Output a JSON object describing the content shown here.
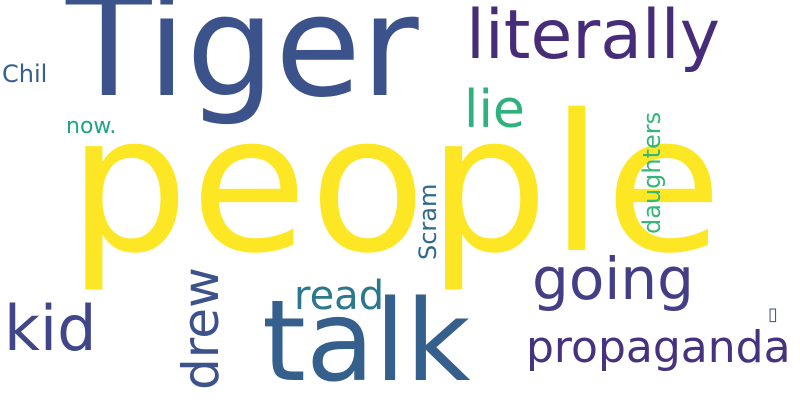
{
  "words": [
    {
      "key": "people",
      "text": "people",
      "color": "#fde725"
    },
    {
      "key": "tiger",
      "text": "Tiger",
      "color": "#3b528b"
    },
    {
      "key": "talk",
      "text": "talk",
      "color": "#355f8d"
    },
    {
      "key": "literally",
      "text": "literally",
      "color": "#472c7a"
    },
    {
      "key": "going",
      "text": "going",
      "color": "#433e85"
    },
    {
      "key": "propaganda",
      "text": "propaganda",
      "color": "#46327e"
    },
    {
      "key": "kid",
      "text": "kid",
      "color": "#404688"
    },
    {
      "key": "drew",
      "text": "drew",
      "color": "#3b528b"
    },
    {
      "key": "read",
      "text": "read",
      "color": "#2a788e"
    },
    {
      "key": "lie",
      "text": "lie",
      "color": "#2db27d"
    },
    {
      "key": "daughters",
      "text": "daughters",
      "color": "#35b779"
    },
    {
      "key": "scram",
      "text": "Scram",
      "color": "#31688e"
    },
    {
      "key": "now",
      "text": "now.",
      "color": "#20a486"
    },
    {
      "key": "chil",
      "text": "Chil",
      "color": "#355f8d"
    },
    {
      "key": "glyph",
      "text": "▯",
      "color": "#3b528b"
    }
  ]
}
